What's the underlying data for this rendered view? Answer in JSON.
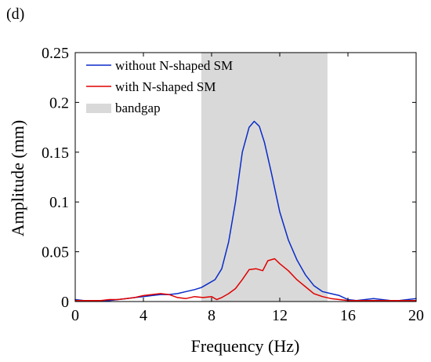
{
  "panel_label": "(d)",
  "chart_data": {
    "type": "line",
    "xlabel": "Frequency (Hz)",
    "ylabel": "Amplitude (mm)",
    "xlim": [
      0,
      20
    ],
    "ylim": [
      0,
      0.25
    ],
    "xticks": [
      0,
      4,
      8,
      12,
      16,
      20
    ],
    "yticks": [
      0,
      0.05,
      0.1,
      0.15,
      0.2,
      0.25
    ],
    "xtick_labels": [
      "0",
      "4",
      "8",
      "12",
      "16",
      "20"
    ],
    "ytick_labels": [
      "0",
      "0.05",
      "0.1",
      "0.15",
      "0.2",
      "0.25"
    ],
    "grid": false,
    "legend_position": "top-left",
    "bandgap": {
      "name": "bandgap",
      "x_start": 7.4,
      "x_end": 14.8,
      "color": "#d9d9d9"
    },
    "series": [
      {
        "name": "without N-shaped SM",
        "color": "#0a2cc8",
        "x": [
          0,
          0.5,
          1,
          1.5,
          2,
          2.5,
          3,
          3.5,
          4,
          4.5,
          5,
          5.5,
          6,
          6.5,
          7,
          7.4,
          7.8,
          8.2,
          8.6,
          9,
          9.4,
          9.8,
          10.2,
          10.5,
          10.8,
          11.1,
          11.5,
          12,
          12.5,
          13,
          13.5,
          14,
          14.5,
          15,
          15.5,
          16,
          16.5,
          17,
          17.5,
          18,
          18.5,
          19,
          19.5,
          20
        ],
        "y": [
          0.002,
          0.001,
          0.001,
          0.001,
          0.001,
          0.002,
          0.003,
          0.004,
          0.005,
          0.006,
          0.007,
          0.007,
          0.008,
          0.01,
          0.012,
          0.014,
          0.018,
          0.022,
          0.033,
          0.06,
          0.1,
          0.15,
          0.175,
          0.181,
          0.176,
          0.16,
          0.13,
          0.09,
          0.062,
          0.042,
          0.027,
          0.016,
          0.01,
          0.008,
          0.006,
          0.002,
          0.001,
          0.002,
          0.003,
          0.002,
          0.001,
          0.001,
          0.002,
          0.003
        ]
      },
      {
        "name": "with N-shaped SM",
        "color": "#e00000",
        "x": [
          0,
          0.5,
          1,
          1.5,
          2,
          2.5,
          3,
          3.5,
          4,
          4.5,
          5,
          5.5,
          6,
          6.5,
          7,
          7.5,
          8,
          8.3,
          8.6,
          9,
          9.4,
          9.8,
          10.2,
          10.6,
          11,
          11.3,
          11.7,
          12,
          12.5,
          13,
          13.5,
          14,
          14.5,
          15,
          15.5,
          16,
          16.5,
          17,
          17.5,
          18,
          18.5,
          19,
          19.5,
          20
        ],
        "y": [
          0.001,
          0.001,
          0.001,
          0.001,
          0.002,
          0.002,
          0.003,
          0.004,
          0.006,
          0.007,
          0.008,
          0.007,
          0.004,
          0.003,
          0.005,
          0.004,
          0.005,
          0.002,
          0.004,
          0.008,
          0.013,
          0.022,
          0.032,
          0.033,
          0.031,
          0.041,
          0.043,
          0.038,
          0.031,
          0.022,
          0.015,
          0.008,
          0.005,
          0.003,
          0.002,
          0.001,
          0.001,
          0.001,
          0.001,
          0.001,
          0.001,
          0.001,
          0.001,
          0.001
        ]
      }
    ]
  }
}
